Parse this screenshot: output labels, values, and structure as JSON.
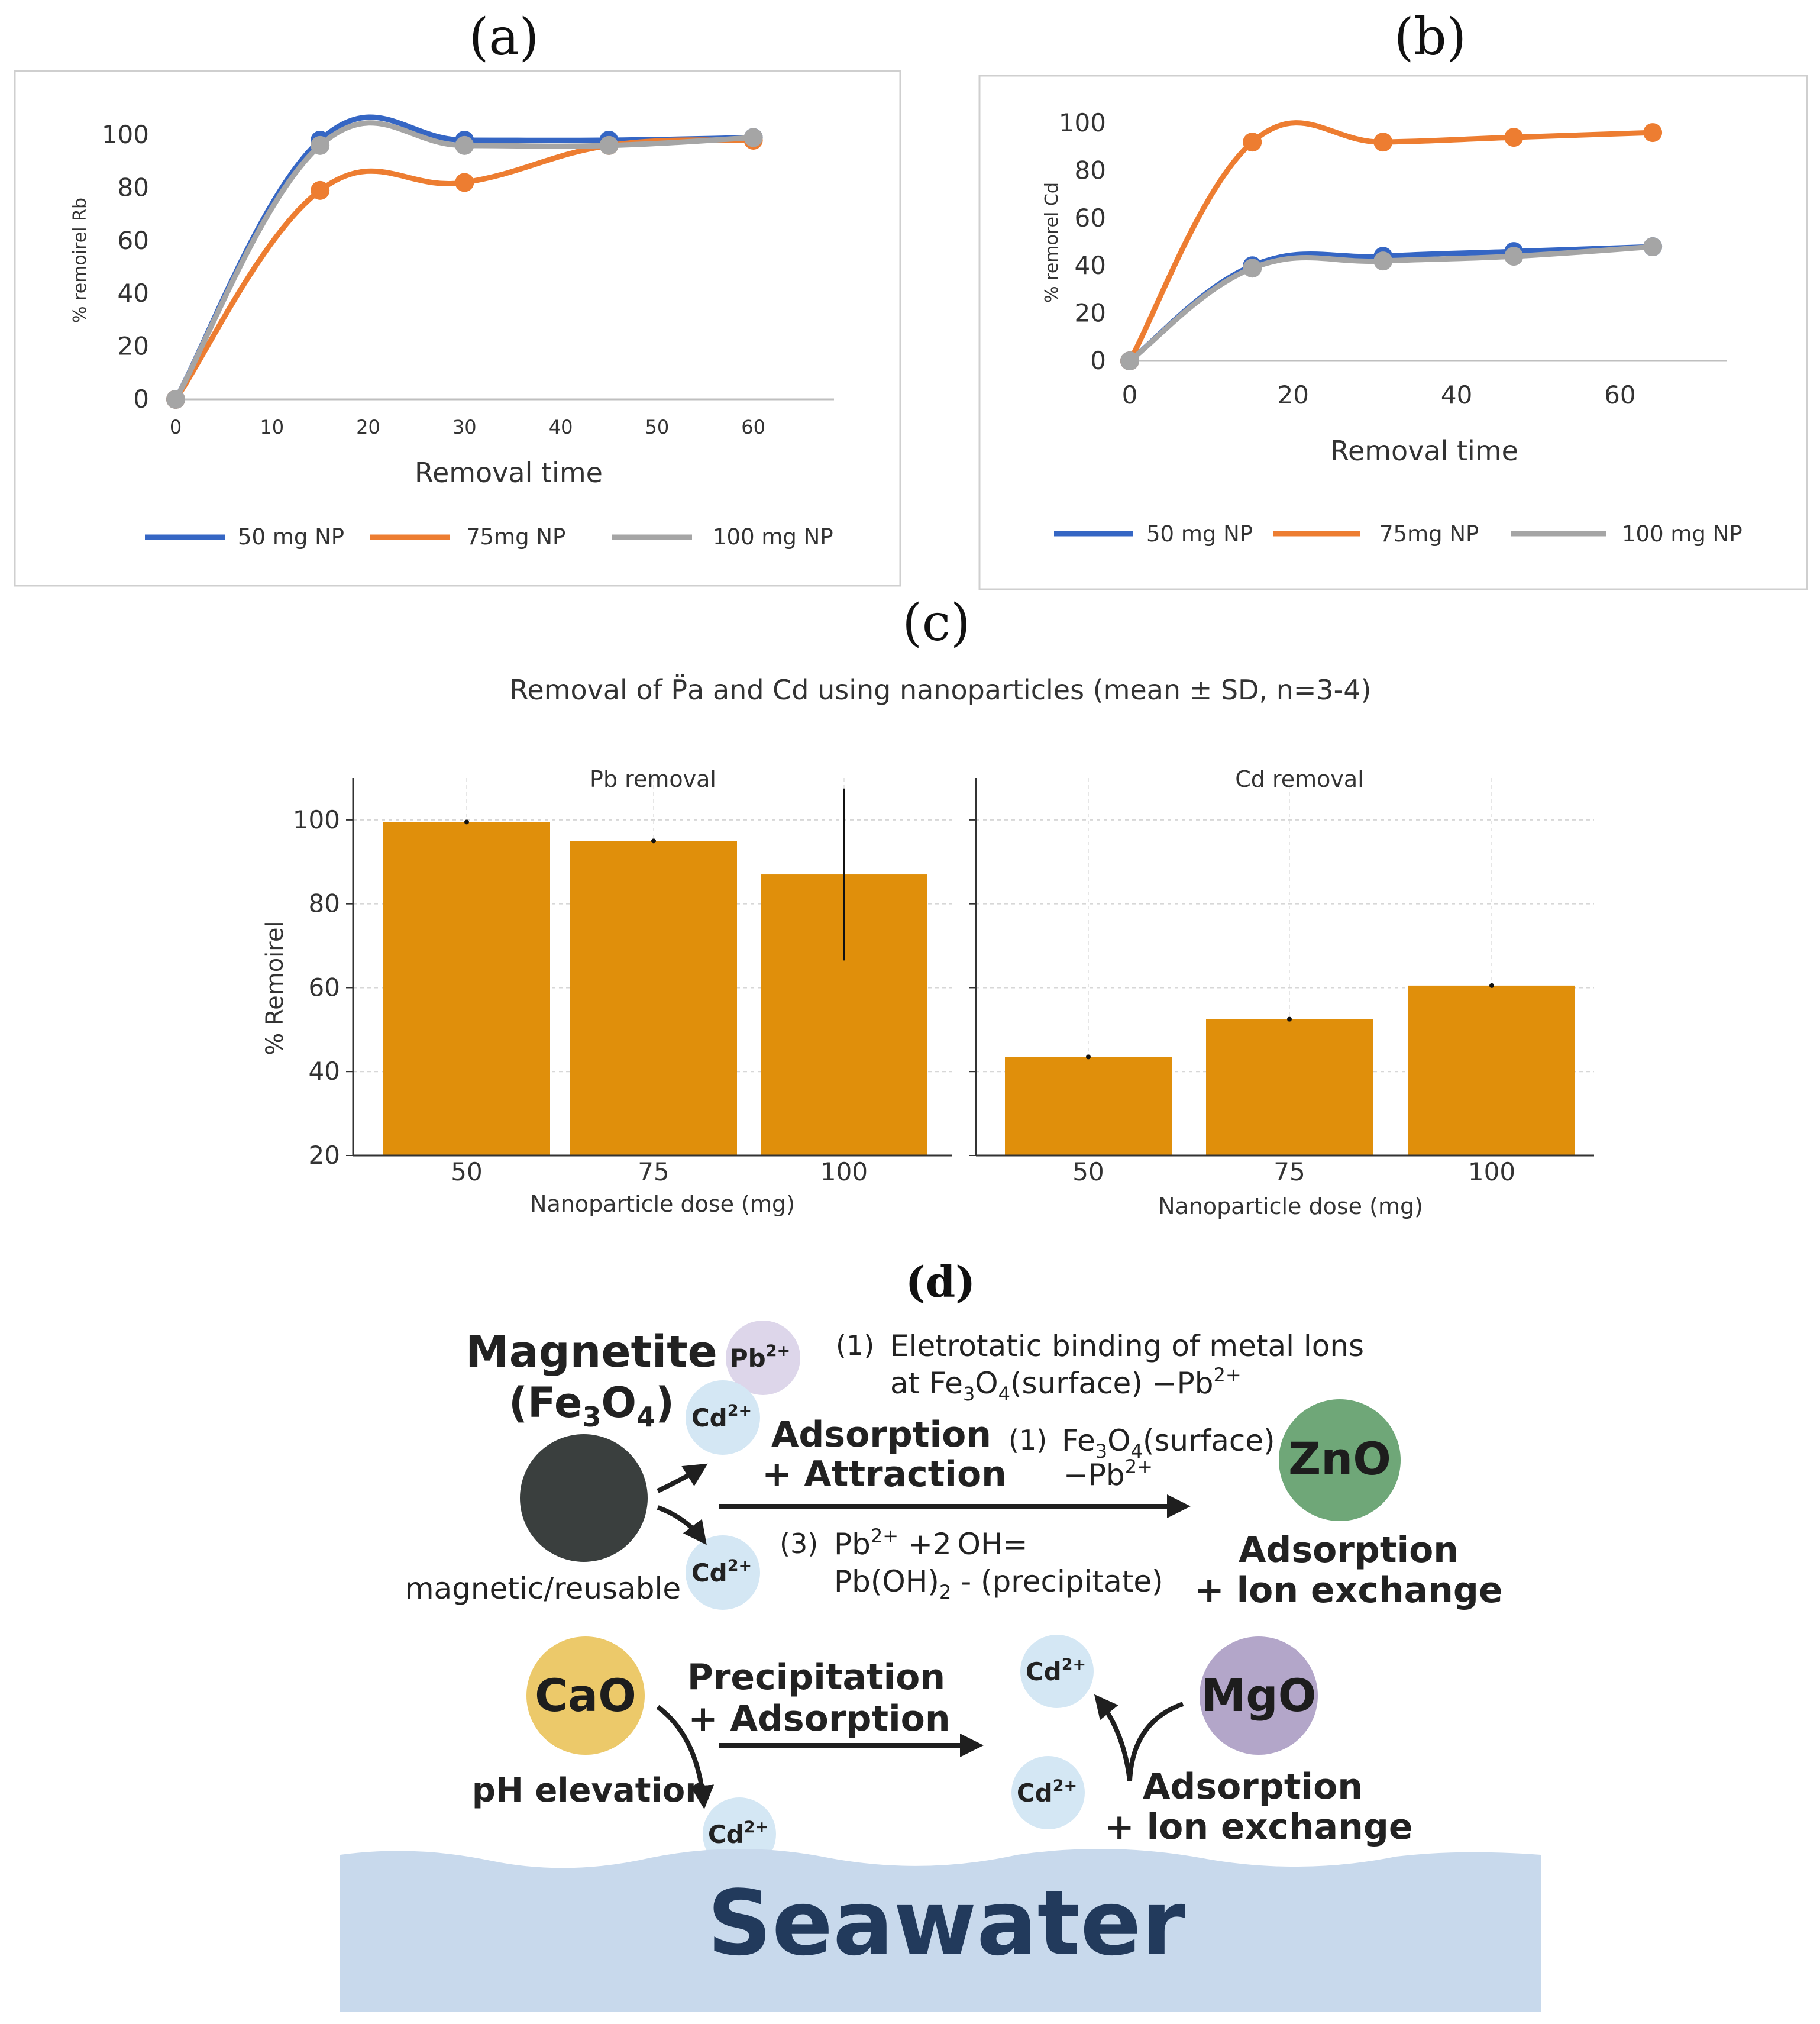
{
  "panel_labels": {
    "a": "(a)",
    "b": "(b)",
    "c": "(c)",
    "d": "(d)"
  },
  "colors": {
    "blue": "#3566c4",
    "orange": "#ed7d31",
    "gray": "#a5a5a5",
    "bar": "#e08f0b"
  },
  "chart_data": [
    {
      "id": "a",
      "type": "line",
      "title": "(a)",
      "xlabel": "Removal time",
      "ylabel": "% remoirel Rb",
      "xlim": [
        0,
        65
      ],
      "ylim": [
        0,
        100
      ],
      "xticks": [
        0,
        10,
        20,
        30,
        40,
        50,
        60
      ],
      "yticks": [
        0,
        20,
        40,
        60,
        80,
        100
      ],
      "x": [
        0,
        15,
        30,
        45,
        60
      ],
      "series": [
        {
          "name": "50 mg NP",
          "color": "#3566c4",
          "values": [
            0,
            98,
            98,
            98,
            99
          ]
        },
        {
          "name": "75mg NP",
          "color": "#ed7d31",
          "values": [
            0,
            79,
            82,
            96,
            98
          ]
        },
        {
          "name": "100 mg NP",
          "color": "#a5a5a5",
          "values": [
            0,
            96,
            96,
            96,
            99
          ]
        }
      ],
      "legend": "bottom"
    },
    {
      "id": "b",
      "type": "line",
      "title": "(b)",
      "xlabel": "Removal time",
      "ylabel": "% remorel Cd",
      "xlim": [
        0,
        70
      ],
      "ylim": [
        0,
        100
      ],
      "xticks": [
        0,
        20,
        40,
        60
      ],
      "yticks": [
        0,
        20,
        40,
        60,
        80,
        100
      ],
      "x": [
        0,
        15,
        31,
        47,
        64
      ],
      "series": [
        {
          "name": "50 mg NP",
          "color": "#3566c4",
          "values": [
            0,
            40,
            44,
            46,
            48
          ]
        },
        {
          "name": "75mg NP",
          "color": "#ed7d31",
          "values": [
            0,
            92,
            92,
            94,
            96
          ]
        },
        {
          "name": "100 mg NP",
          "color": "#a5a5a5",
          "values": [
            0,
            39,
            42,
            44,
            48
          ]
        }
      ],
      "legend": "bottom"
    },
    {
      "id": "c",
      "type": "bar",
      "title": "Removal of P̈a and Cd using nanoparticles (mean ± SD, n=3-4)",
      "ylabel": "% Remoirel",
      "ylim": [
        20,
        110
      ],
      "yticks": [
        20,
        40,
        60,
        80,
        100
      ],
      "subplots": [
        {
          "title": "Pb removal",
          "xlabel": "Nanoparticle dose (mg)",
          "categories": [
            "50",
            "75",
            "100"
          ],
          "values": [
            99.5,
            95,
            87
          ],
          "errors": [
            0,
            0,
            20.5
          ]
        },
        {
          "title": "Cd removal",
          "xlabel": "Nanoparticle dose (mg)",
          "categories": [
            "50",
            "75",
            "100"
          ],
          "values": [
            43.5,
            52.5,
            60.5
          ],
          "errors": [
            0,
            0,
            0
          ]
        }
      ]
    }
  ],
  "diagram": {
    "magnetite": {
      "title": "Magnetite",
      "formula_open": "(Fe",
      "formula_sub1": "3",
      "formula_mid": "O",
      "formula_sub2": "4",
      "formula_close": ")",
      "caption": "magnetic/reusable"
    },
    "ions": {
      "pb": "Pb",
      "pb_charge": "2+",
      "cd": "Cd",
      "cd_charge": "2+"
    },
    "step1": {
      "num": "(1)",
      "line1": "Eletrotatic binding of metal lons",
      "line2_pre": "at Fe",
      "line2_s1": "3",
      "line2_mid": "O",
      "line2_s2": "4",
      "line2_post": "(surface) −Pb",
      "line2_sup": "2+"
    },
    "adsorption_attraction": {
      "line1": "Adsorption",
      "line2": "+ Attraction"
    },
    "step1b": {
      "num": "(1)",
      "line1_pre": "Fe",
      "line1_s1": "3",
      "line1_mid": "O",
      "line1_s2": "4",
      "line1_post": "(surface)",
      "line2": "−Pb",
      "line2_sup": "2+"
    },
    "step3": {
      "num": "(3)",
      "line1_pre": "Pb",
      "line1_sup": "2+",
      "line1_post": " +2 OH=",
      "line2_pre": "Pb(OH)",
      "line2_sub": "2",
      "line2_post": " - (precipitate)"
    },
    "zno": {
      "label": "ZnO",
      "line1": "Adsorption",
      "line2": "+ lon exchange"
    },
    "cao": {
      "label": "CaO",
      "caption": "pH elevation"
    },
    "precip": {
      "line1": "Precipitation",
      "line2": "+ Adsorption"
    },
    "mgo": {
      "label": "MgO",
      "line1": "Adsorption",
      "line2": "+ lon exchange"
    },
    "seawater": "Seawater"
  }
}
